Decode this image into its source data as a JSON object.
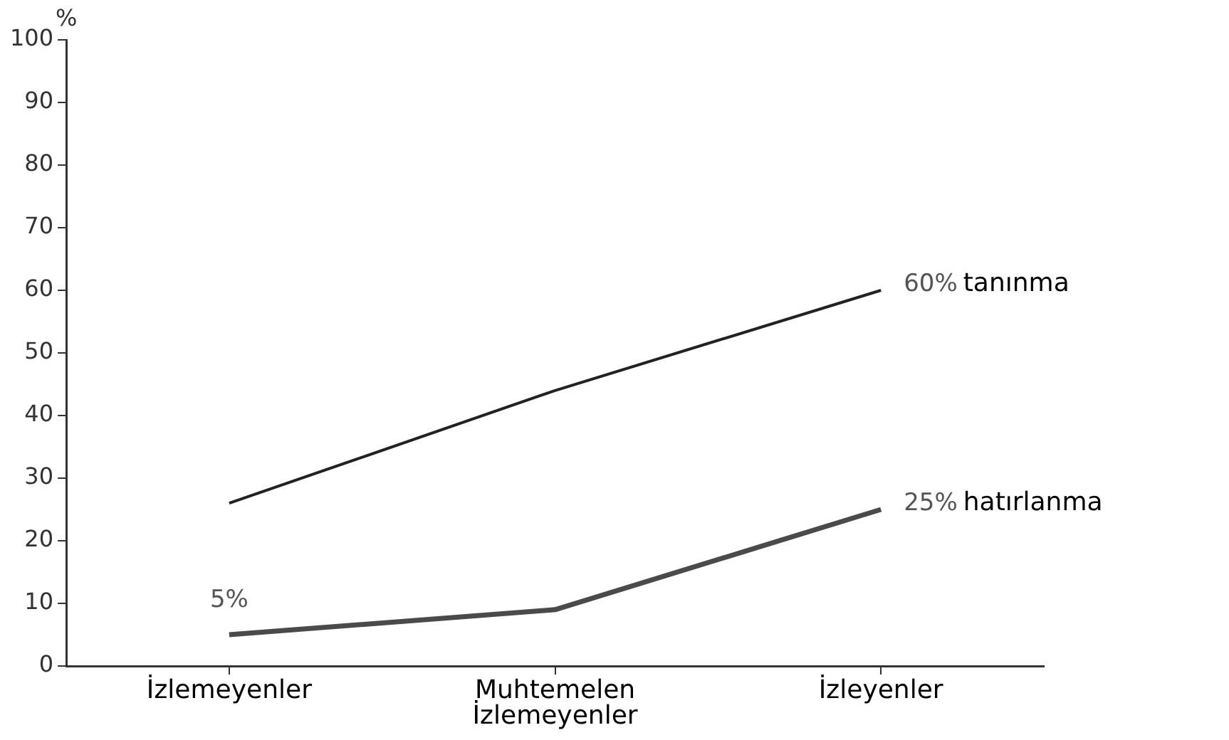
{
  "chart_data": {
    "type": "line",
    "ylabel": "%",
    "categories": [
      "İzlemeyenler",
      "Muhtemelen İzlemeyenler",
      "İzleyenler"
    ],
    "ylim": [
      0,
      100
    ],
    "yticks": [
      0,
      10,
      20,
      30,
      40,
      50,
      60,
      70,
      80,
      90,
      100
    ],
    "marker": "none",
    "series": [
      {
        "name": "tanınma",
        "color": "#222222",
        "values": [
          26,
          44,
          60
        ],
        "value_labels": [
          null,
          null,
          "60%"
        ]
      },
      {
        "name": "hatırlanma",
        "color": "#4a4a4a",
        "values": [
          5,
          9,
          25
        ],
        "value_labels": [
          "5%",
          null,
          "25%"
        ]
      }
    ]
  }
}
